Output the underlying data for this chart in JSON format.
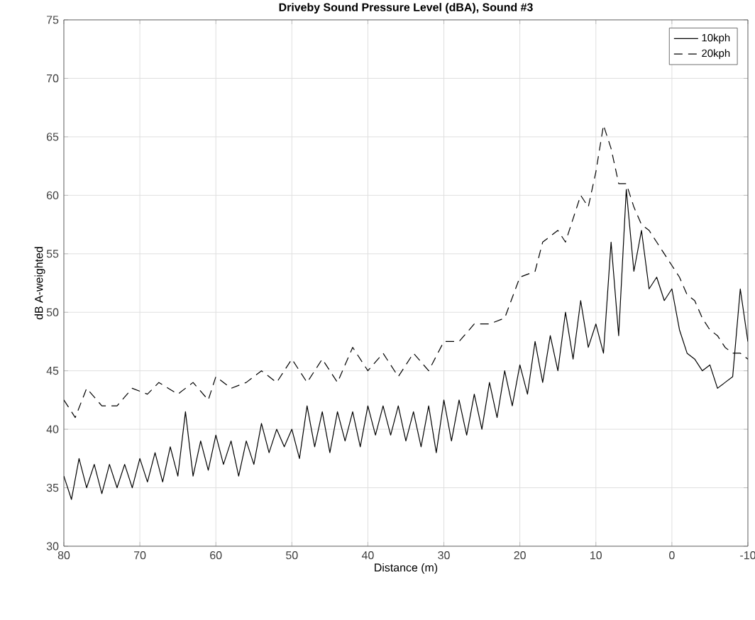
{
  "chart_data": {
    "type": "line",
    "title": "Driveby Sound Pressure Level (dBA), Sound #3",
    "xlabel": "Distance (m)",
    "ylabel": "dB A-weighted",
    "xlim": [
      80,
      -10
    ],
    "xticks": [
      80,
      70,
      60,
      50,
      40,
      30,
      20,
      10,
      0,
      -10
    ],
    "ylim": [
      30,
      75
    ],
    "yticks": [
      30,
      35,
      40,
      45,
      50,
      55,
      60,
      65,
      70,
      75
    ],
    "grid": true,
    "legend": "top right",
    "series": [
      {
        "name": "10kph",
        "color": "#000000",
        "line_style": "solid",
        "x": [
          80,
          79,
          78,
          77,
          76,
          75,
          74,
          73,
          72,
          71,
          70,
          69,
          68,
          67,
          66,
          65,
          64,
          63,
          62,
          61,
          60,
          59,
          58,
          57,
          56,
          55,
          54,
          53,
          52,
          51,
          50,
          49,
          48,
          47,
          46,
          45,
          44,
          43,
          42,
          41,
          40,
          39,
          38,
          37,
          36,
          35,
          34,
          33,
          32,
          31,
          30,
          29,
          28,
          27,
          26,
          25,
          24,
          23,
          22,
          21,
          20,
          19,
          18,
          17,
          16,
          15,
          14,
          13,
          12,
          11,
          10,
          9,
          8,
          7,
          6,
          5,
          4,
          3,
          2,
          1,
          0,
          -1,
          -2,
          -3,
          -4,
          -5,
          -6,
          -7,
          -8,
          -9,
          -10
        ],
        "values": [
          36,
          34,
          37.5,
          35,
          37,
          34.5,
          37,
          35,
          37,
          35,
          37.5,
          35.5,
          38,
          35.5,
          38.5,
          36,
          41.5,
          36,
          39,
          36.5,
          39.5,
          37,
          39,
          36,
          39,
          37,
          40.5,
          38,
          40,
          38.5,
          40,
          37.5,
          42,
          38.5,
          41.5,
          38,
          41.5,
          39,
          41.5,
          38.5,
          42,
          39.5,
          42,
          39.5,
          42,
          39,
          41.5,
          38.5,
          42,
          38,
          42.5,
          39,
          42.5,
          39.5,
          43,
          40,
          44,
          41,
          45,
          42,
          45.5,
          43,
          47.5,
          44,
          48,
          45,
          50,
          46,
          51,
          47,
          49,
          46.5,
          56,
          48,
          60.5,
          53.5,
          57,
          52,
          53,
          51,
          52,
          48.5,
          46.5,
          46,
          45,
          45.5,
          43.5,
          44,
          44.5,
          52,
          47.5
        ]
      },
      {
        "name": "20kph",
        "color": "#000000",
        "line_style": "dashed",
        "x": [
          80,
          78.5,
          77,
          75,
          73,
          71,
          69,
          67.5,
          65,
          63,
          61,
          60,
          58,
          56,
          54,
          52,
          50,
          48,
          46,
          44,
          42,
          40,
          38,
          36,
          34,
          32,
          30,
          28,
          26,
          24,
          22,
          20,
          18,
          17,
          15,
          14,
          13,
          12,
          11,
          10,
          9,
          8,
          7,
          6,
          5,
          4,
          3,
          2,
          1,
          0,
          -1,
          -2,
          -3,
          -4,
          -5,
          -6,
          -7,
          -8,
          -9,
          -10
        ],
        "values": [
          42.5,
          41,
          43.5,
          42,
          42,
          43.5,
          43,
          44,
          43,
          44,
          42.5,
          44.5,
          43.5,
          44,
          45,
          44,
          46,
          44,
          46,
          44,
          47,
          45,
          46.5,
          44.5,
          46.5,
          45,
          47.5,
          47.5,
          49,
          49,
          49.5,
          53,
          53.5,
          56,
          57,
          56,
          58,
          60,
          59,
          62,
          66,
          64,
          61,
          61,
          59,
          57.5,
          57,
          56,
          55,
          54,
          53,
          51.5,
          51,
          49.5,
          48.5,
          48,
          47,
          46.5,
          46.5,
          46
        ]
      }
    ]
  }
}
